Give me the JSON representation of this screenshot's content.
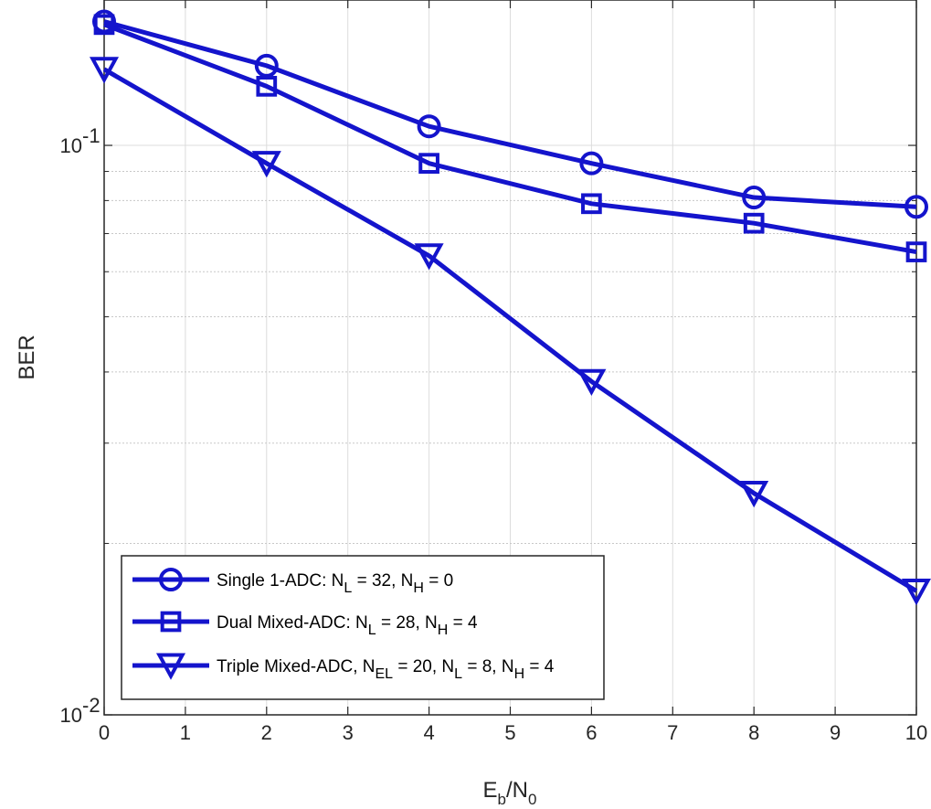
{
  "chart_data": {
    "type": "line",
    "title": "",
    "xlabel": {
      "main": "E",
      "sub1": "b",
      "sep": "/N",
      "sub2": "0"
    },
    "ylabel": "BER",
    "xlim": [
      0,
      10
    ],
    "ylim": [
      0.01,
      0.18
    ],
    "yscale": "log",
    "grid": true,
    "xticks": [
      "0",
      "1",
      "2",
      "3",
      "4",
      "5",
      "6",
      "7",
      "8",
      "9",
      "10"
    ],
    "yticks": [
      {
        "value": 0.1,
        "base": "10",
        "exp": "-1"
      },
      {
        "value": 0.01,
        "base": "10",
        "exp": "-2"
      }
    ],
    "legend_position": "bottom-left",
    "line_color": "#1414cc",
    "x": [
      0,
      2,
      4,
      6,
      8,
      10
    ],
    "series": [
      {
        "marker": "circle",
        "values": [
          0.165,
          0.138,
          0.108,
          0.093,
          0.081,
          0.078
        ],
        "legend": [
          {
            "t": "Single 1-ADC: N"
          },
          {
            "t": "L",
            "sub": true
          },
          {
            "t": " = 32, N"
          },
          {
            "t": "H",
            "sub": true
          },
          {
            "t": " = 0"
          }
        ]
      },
      {
        "marker": "square",
        "values": [
          0.163,
          0.127,
          0.093,
          0.079,
          0.073,
          0.065
        ],
        "legend": [
          {
            "t": "Dual Mixed-ADC: N"
          },
          {
            "t": "L",
            "sub": true
          },
          {
            "t": " = 28, N"
          },
          {
            "t": "H",
            "sub": true
          },
          {
            "t": " = 4"
          }
        ]
      },
      {
        "marker": "triangle-down",
        "values": [
          0.136,
          0.093,
          0.064,
          0.0385,
          0.0245,
          0.0165
        ],
        "legend": [
          {
            "t": "Triple Mixed-ADC, N"
          },
          {
            "t": "EL",
            "sub": true
          },
          {
            "t": " = 20, N"
          },
          {
            "t": "L",
            "sub": true
          },
          {
            "t": " = 8, N"
          },
          {
            "t": "H",
            "sub": true
          },
          {
            "t": " = 4"
          }
        ]
      }
    ]
  }
}
